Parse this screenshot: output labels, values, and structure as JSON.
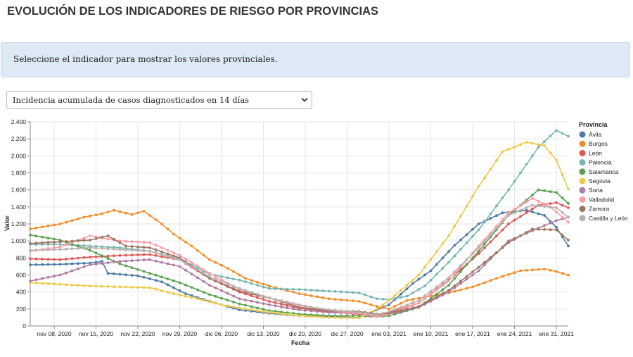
{
  "page": {
    "title": "EVOLUCIÓN DE LOS INDICADORES DE RIESGO POR PROVINCIAS",
    "info": "Seleccione el indicador para mostrar los valores provinciales.",
    "selector_value": "Incidencia acumulada de casos diagnosticados en 14 días"
  },
  "chart_data": {
    "type": "line",
    "title": "",
    "xlabel": "Fecha",
    "ylabel": "Valor",
    "ylim": [
      0,
      2400
    ],
    "yticks": [
      0,
      200,
      400,
      600,
      800,
      1000,
      1200,
      1400,
      1600,
      1800,
      2000,
      2200,
      2400
    ],
    "ytick_labels": [
      "0",
      "200",
      "400",
      "600",
      "800",
      "1.000",
      "1.200",
      "1.400",
      "1.600",
      "1.800",
      "2.000",
      "2.200",
      "2.400"
    ],
    "x_start": "2020-11-04",
    "x_end": "2021-02-02",
    "x_unit": "day index since 2020-11-04",
    "xlim": [
      0,
      90
    ],
    "xticks": [
      4,
      11,
      18,
      25,
      32,
      39,
      46,
      53,
      60,
      67,
      74,
      81,
      88
    ],
    "xtick_labels": [
      "nov 08, 2020",
      "nov 15, 2020",
      "nov 22, 2020",
      "nov 29, 2020",
      "dic 06, 2020",
      "dic 13, 2020",
      "dic 20, 2020",
      "dic 27, 2020",
      "ene 03, 2021",
      "ene 10, 2021",
      "ene 17, 2021",
      "ene 24, 2021",
      "ene 31, 2021"
    ],
    "legend_title": "Provincia",
    "legend_position": "right",
    "series": [
      {
        "name": "Ávila",
        "color": "#4e79a7",
        "points": [
          [
            0,
            720
          ],
          [
            5,
            725
          ],
          [
            10,
            740
          ],
          [
            12,
            760
          ],
          [
            13,
            620
          ],
          [
            18,
            590
          ],
          [
            22,
            520
          ],
          [
            26,
            380
          ],
          [
            30,
            290
          ],
          [
            35,
            190
          ],
          [
            40,
            150
          ],
          [
            45,
            120
          ],
          [
            50,
            110
          ],
          [
            55,
            100
          ],
          [
            60,
            250
          ],
          [
            64,
            500
          ],
          [
            67,
            650
          ],
          [
            71,
            950
          ],
          [
            75,
            1200
          ],
          [
            79,
            1330
          ],
          [
            83,
            1360
          ],
          [
            86,
            1300
          ],
          [
            88,
            1160
          ],
          [
            90,
            940
          ]
        ]
      },
      {
        "name": "Burgos",
        "color": "#f28e2b",
        "points": [
          [
            0,
            1140
          ],
          [
            5,
            1200
          ],
          [
            9,
            1280
          ],
          [
            12,
            1320
          ],
          [
            14,
            1360
          ],
          [
            17,
            1310
          ],
          [
            19,
            1350
          ],
          [
            22,
            1200
          ],
          [
            24,
            1080
          ],
          [
            27,
            940
          ],
          [
            30,
            780
          ],
          [
            33,
            680
          ],
          [
            36,
            560
          ],
          [
            40,
            470
          ],
          [
            45,
            380
          ],
          [
            50,
            320
          ],
          [
            55,
            290
          ],
          [
            58,
            230
          ],
          [
            60,
            200
          ],
          [
            63,
            300
          ],
          [
            66,
            340
          ],
          [
            70,
            390
          ],
          [
            74,
            460
          ],
          [
            78,
            560
          ],
          [
            82,
            650
          ],
          [
            86,
            670
          ],
          [
            88,
            640
          ],
          [
            90,
            600
          ]
        ]
      },
      {
        "name": "León",
        "color": "#e15759",
        "points": [
          [
            0,
            790
          ],
          [
            5,
            780
          ],
          [
            10,
            810
          ],
          [
            15,
            830
          ],
          [
            20,
            840
          ],
          [
            25,
            780
          ],
          [
            30,
            560
          ],
          [
            35,
            400
          ],
          [
            40,
            290
          ],
          [
            45,
            210
          ],
          [
            50,
            170
          ],
          [
            55,
            140
          ],
          [
            58,
            120
          ],
          [
            60,
            160
          ],
          [
            65,
            270
          ],
          [
            70,
            540
          ],
          [
            75,
            850
          ],
          [
            80,
            1200
          ],
          [
            85,
            1420
          ],
          [
            88,
            1450
          ],
          [
            90,
            1390
          ]
        ]
      },
      {
        "name": "Palencia",
        "color": "#76b7b2",
        "points": [
          [
            0,
            960
          ],
          [
            5,
            960
          ],
          [
            10,
            940
          ],
          [
            15,
            920
          ],
          [
            20,
            880
          ],
          [
            25,
            790
          ],
          [
            30,
            610
          ],
          [
            35,
            540
          ],
          [
            40,
            440
          ],
          [
            45,
            430
          ],
          [
            50,
            410
          ],
          [
            55,
            390
          ],
          [
            58,
            320
          ],
          [
            60,
            310
          ],
          [
            63,
            350
          ],
          [
            66,
            470
          ],
          [
            70,
            750
          ],
          [
            75,
            1130
          ],
          [
            80,
            1600
          ],
          [
            85,
            2100
          ],
          [
            88,
            2300
          ],
          [
            90,
            2230
          ]
        ]
      },
      {
        "name": "Salamanca",
        "color": "#59a14f",
        "points": [
          [
            0,
            1070
          ],
          [
            5,
            1010
          ],
          [
            10,
            890
          ],
          [
            15,
            730
          ],
          [
            20,
            620
          ],
          [
            25,
            510
          ],
          [
            30,
            370
          ],
          [
            35,
            260
          ],
          [
            40,
            180
          ],
          [
            45,
            140
          ],
          [
            50,
            120
          ],
          [
            55,
            120
          ],
          [
            58,
            110
          ],
          [
            60,
            120
          ],
          [
            65,
            220
          ],
          [
            70,
            480
          ],
          [
            75,
            880
          ],
          [
            80,
            1300
          ],
          [
            85,
            1600
          ],
          [
            88,
            1570
          ],
          [
            90,
            1440
          ]
        ]
      },
      {
        "name": "Segovia",
        "color": "#edc948",
        "points": [
          [
            0,
            510
          ],
          [
            5,
            490
          ],
          [
            10,
            470
          ],
          [
            15,
            460
          ],
          [
            20,
            450
          ],
          [
            24,
            380
          ],
          [
            28,
            320
          ],
          [
            32,
            250
          ],
          [
            36,
            200
          ],
          [
            40,
            160
          ],
          [
            45,
            120
          ],
          [
            50,
            100
          ],
          [
            55,
            95
          ],
          [
            58,
            200
          ],
          [
            60,
            300
          ],
          [
            65,
            600
          ],
          [
            70,
            1060
          ],
          [
            75,
            1640
          ],
          [
            79,
            2050
          ],
          [
            83,
            2160
          ],
          [
            86,
            2120
          ],
          [
            88,
            1950
          ],
          [
            90,
            1610
          ]
        ]
      },
      {
        "name": "Soria",
        "color": "#b07aa1",
        "points": [
          [
            0,
            530
          ],
          [
            5,
            600
          ],
          [
            10,
            720
          ],
          [
            15,
            760
          ],
          [
            20,
            780
          ],
          [
            25,
            700
          ],
          [
            30,
            480
          ],
          [
            35,
            320
          ],
          [
            40,
            250
          ],
          [
            45,
            190
          ],
          [
            50,
            160
          ],
          [
            55,
            150
          ],
          [
            58,
            120
          ],
          [
            60,
            140
          ],
          [
            65,
            220
          ],
          [
            70,
            400
          ],
          [
            75,
            650
          ],
          [
            80,
            1000
          ],
          [
            85,
            1150
          ],
          [
            88,
            1240
          ],
          [
            90,
            1280
          ]
        ]
      },
      {
        "name": "Valladolid",
        "color": "#ff9da7",
        "points": [
          [
            0,
            880
          ],
          [
            5,
            930
          ],
          [
            10,
            1060
          ],
          [
            15,
            1000
          ],
          [
            20,
            980
          ],
          [
            25,
            830
          ],
          [
            30,
            620
          ],
          [
            35,
            430
          ],
          [
            40,
            330
          ],
          [
            45,
            250
          ],
          [
            50,
            180
          ],
          [
            55,
            150
          ],
          [
            58,
            110
          ],
          [
            60,
            140
          ],
          [
            65,
            270
          ],
          [
            70,
            530
          ],
          [
            75,
            940
          ],
          [
            80,
            1330
          ],
          [
            84,
            1500
          ],
          [
            87,
            1400
          ],
          [
            90,
            1220
          ]
        ]
      },
      {
        "name": "Zamora",
        "color": "#9c755f",
        "points": [
          [
            0,
            970
          ],
          [
            5,
            990
          ],
          [
            10,
            1010
          ],
          [
            13,
            1060
          ],
          [
            16,
            940
          ],
          [
            20,
            920
          ],
          [
            25,
            800
          ],
          [
            30,
            560
          ],
          [
            35,
            410
          ],
          [
            40,
            330
          ],
          [
            45,
            220
          ],
          [
            50,
            180
          ],
          [
            55,
            170
          ],
          [
            58,
            140
          ],
          [
            60,
            150
          ],
          [
            65,
            230
          ],
          [
            70,
            420
          ],
          [
            75,
            690
          ],
          [
            80,
            980
          ],
          [
            84,
            1140
          ],
          [
            88,
            1130
          ],
          [
            90,
            1010
          ]
        ]
      },
      {
        "name": "Castilla y León",
        "color": "#bab0ac",
        "points": [
          [
            0,
            890
          ],
          [
            5,
            900
          ],
          [
            10,
            920
          ],
          [
            15,
            900
          ],
          [
            20,
            880
          ],
          [
            25,
            780
          ],
          [
            30,
            580
          ],
          [
            35,
            440
          ],
          [
            40,
            330
          ],
          [
            45,
            240
          ],
          [
            50,
            190
          ],
          [
            55,
            160
          ],
          [
            58,
            130
          ],
          [
            60,
            170
          ],
          [
            65,
            300
          ],
          [
            70,
            570
          ],
          [
            75,
            920
          ],
          [
            80,
            1300
          ],
          [
            84,
            1420
          ],
          [
            88,
            1390
          ],
          [
            90,
            1280
          ]
        ]
      }
    ]
  }
}
